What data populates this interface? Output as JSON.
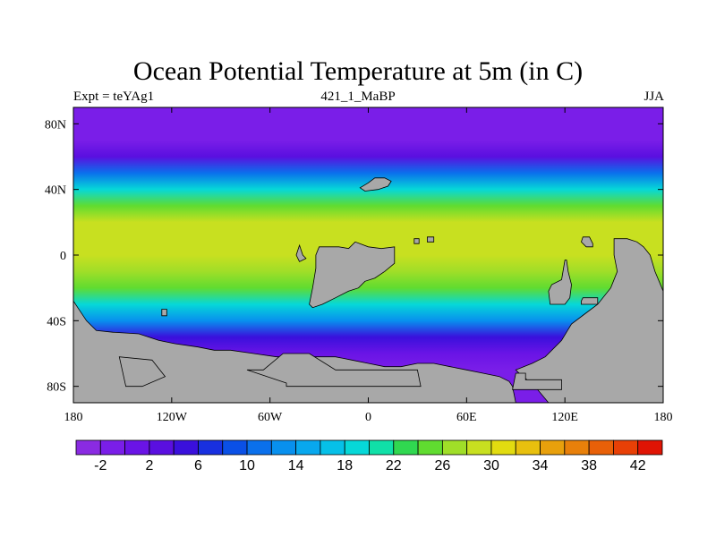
{
  "title": "Ocean Potential Temperature at 5m (in C)",
  "subtitle_left": "Expt = teYAg1",
  "subtitle_center": "421_1_MaBP",
  "subtitle_right": "JJA",
  "chart_data": {
    "type": "heatmap",
    "projection": "cylindrical-equidistant",
    "field": "Ocean potential temperature at 5 m depth",
    "units": "C",
    "season": "JJA",
    "xlim": [
      -180,
      180
    ],
    "ylim": [
      -90,
      90
    ],
    "x_ticks": [
      {
        "value": -180,
        "label": "180"
      },
      {
        "value": -120,
        "label": "120W"
      },
      {
        "value": -60,
        "label": "60W"
      },
      {
        "value": 0,
        "label": "0"
      },
      {
        "value": 60,
        "label": "60E"
      },
      {
        "value": 120,
        "label": "120E"
      },
      {
        "value": 180,
        "label": "180"
      }
    ],
    "y_ticks": [
      {
        "value": 80,
        "label": "80N"
      },
      {
        "value": 40,
        "label": "40N"
      },
      {
        "value": 0,
        "label": "0"
      },
      {
        "value": -40,
        "label": "40S"
      },
      {
        "value": -80,
        "label": "80S"
      }
    ],
    "colorbar": {
      "levels": [
        -4,
        -2,
        0,
        2,
        4,
        6,
        8,
        10,
        12,
        14,
        16,
        18,
        20,
        22,
        24,
        26,
        28,
        30,
        32,
        34,
        36,
        38,
        40,
        42,
        44
      ],
      "labels": [
        "-2",
        "2",
        "6",
        "10",
        "14",
        "18",
        "22",
        "26",
        "30",
        "34",
        "38",
        "42"
      ],
      "colors": [
        "#8a2be2",
        "#7a1ee8",
        "#6a14e6",
        "#5a0fe0",
        "#3a10dc",
        "#1830e0",
        "#0a50e6",
        "#0a70ec",
        "#0890ee",
        "#08a8ee",
        "#06c0e8",
        "#06d8d8",
        "#10e0a8",
        "#30d850",
        "#60dc30",
        "#a0de28",
        "#c8e020",
        "#e2dc10",
        "#e8c00e",
        "#e8a00c",
        "#e8800a",
        "#e86008",
        "#e84006",
        "#e01404"
      ]
    },
    "zonal_mean_profile": [
      {
        "lat": 90,
        "value": -1.8
      },
      {
        "lat": 70,
        "value": -1.5
      },
      {
        "lat": 60,
        "value": 3
      },
      {
        "lat": 50,
        "value": 11
      },
      {
        "lat": 40,
        "value": 19
      },
      {
        "lat": 30,
        "value": 25
      },
      {
        "lat": 20,
        "value": 28
      },
      {
        "lat": 10,
        "value": 29
      },
      {
        "lat": 0,
        "value": 29
      },
      {
        "lat": -10,
        "value": 27
      },
      {
        "lat": -20,
        "value": 24
      },
      {
        "lat": -30,
        "value": 19
      },
      {
        "lat": -40,
        "value": 12
      },
      {
        "lat": -50,
        "value": 5
      },
      {
        "lat": -60,
        "value": 0
      },
      {
        "lat": -70,
        "value": -1.5
      },
      {
        "lat": -90,
        "value": -1.8
      }
    ],
    "land_color": "#a8a8a8",
    "land_regions": [
      {
        "name": "north-atlantic-island",
        "polygon": [
          [
            -5,
            41
          ],
          [
            0,
            44
          ],
          [
            4,
            47
          ],
          [
            10,
            47
          ],
          [
            14,
            45
          ],
          [
            12,
            42
          ],
          [
            6,
            40
          ],
          [
            -2,
            39
          ]
        ]
      },
      {
        "name": "africa-west",
        "polygon": [
          [
            -42,
            6
          ],
          [
            -40,
            0
          ],
          [
            -38,
            -2
          ],
          [
            -42,
            -4
          ],
          [
            -44,
            0
          ]
        ]
      },
      {
        "name": "africa",
        "polygon": [
          [
            -30,
            5
          ],
          [
            -18,
            5
          ],
          [
            -12,
            4
          ],
          [
            -8,
            8
          ],
          [
            0,
            5
          ],
          [
            8,
            4
          ],
          [
            16,
            5
          ],
          [
            16,
            -5
          ],
          [
            10,
            -10
          ],
          [
            4,
            -14
          ],
          [
            -2,
            -16
          ],
          [
            -6,
            -20
          ],
          [
            -12,
            -22
          ],
          [
            -20,
            -26
          ],
          [
            -28,
            -30
          ],
          [
            -34,
            -32
          ],
          [
            -36,
            -30
          ],
          [
            -34,
            -20
          ],
          [
            -32,
            -8
          ],
          [
            -32,
            0
          ]
        ]
      },
      {
        "name": "indian-islet-a",
        "polygon": [
          [
            28,
            10
          ],
          [
            31,
            10
          ],
          [
            31,
            7
          ],
          [
            28,
            7
          ]
        ]
      },
      {
        "name": "indian-islet-b",
        "polygon": [
          [
            36,
            11
          ],
          [
            40,
            11
          ],
          [
            40,
            8
          ],
          [
            36,
            8
          ]
        ]
      },
      {
        "name": "pacific-islet",
        "polygon": [
          [
            -126,
            -33
          ],
          [
            -123,
            -33
          ],
          [
            -123,
            -37
          ],
          [
            -126,
            -37
          ]
        ]
      },
      {
        "name": "australia-west",
        "polygon": [
          [
            120,
            -3
          ],
          [
            121,
            -3
          ],
          [
            122,
            -10
          ],
          [
            124,
            -18
          ],
          [
            123,
            -26
          ],
          [
            120,
            -30
          ],
          [
            111,
            -30
          ],
          [
            110,
            -22
          ],
          [
            112,
            -18
          ],
          [
            118,
            -15
          ]
        ]
      },
      {
        "name": "australia-se",
        "polygon": [
          [
            130,
            -28
          ],
          [
            131,
            -26
          ],
          [
            140,
            -26
          ],
          [
            140,
            -30
          ],
          [
            130,
            -30
          ]
        ]
      },
      {
        "name": "east-continent",
        "polygon": [
          [
            150,
            10
          ],
          [
            158,
            10
          ],
          [
            164,
            8
          ],
          [
            168,
            5
          ],
          [
            172,
            0
          ],
          [
            175,
            -10
          ],
          [
            180,
            -22
          ],
          [
            180,
            -90
          ],
          [
            110,
            -90
          ],
          [
            100,
            -78
          ],
          [
            94,
            -74
          ],
          [
            90,
            -70
          ],
          [
            100,
            -66
          ],
          [
            108,
            -62
          ],
          [
            118,
            -52
          ],
          [
            124,
            -42
          ],
          [
            132,
            -36
          ],
          [
            140,
            -30
          ],
          [
            148,
            -20
          ],
          [
            152,
            -10
          ],
          [
            150,
            0
          ]
        ]
      },
      {
        "name": "islets-east",
        "polygon": [
          [
            131,
            11
          ],
          [
            135,
            11
          ],
          [
            137,
            7
          ],
          [
            137,
            5
          ],
          [
            133,
            5
          ],
          [
            130,
            8
          ]
        ]
      },
      {
        "name": "southwest-landmass",
        "polygon": [
          [
            -180,
            -28
          ],
          [
            -172,
            -40
          ],
          [
            -166,
            -46
          ],
          [
            -156,
            -47
          ],
          [
            -140,
            -48
          ],
          [
            -128,
            -52
          ],
          [
            -118,
            -54
          ],
          [
            -104,
            -56
          ],
          [
            -94,
            -58
          ],
          [
            -84,
            -58
          ],
          [
            -70,
            -60
          ],
          [
            -56,
            -62
          ],
          [
            -40,
            -62
          ],
          [
            -28,
            -62
          ],
          [
            -20,
            -62
          ],
          [
            -10,
            -64
          ],
          [
            0,
            -66
          ],
          [
            10,
            -68
          ],
          [
            20,
            -68
          ],
          [
            30,
            -66
          ],
          [
            40,
            -66
          ],
          [
            50,
            -68
          ],
          [
            60,
            -70
          ],
          [
            70,
            -72
          ],
          [
            80,
            -74
          ],
          [
            86,
            -77
          ],
          [
            88,
            -80
          ],
          [
            90,
            -90
          ],
          [
            -180,
            -90
          ]
        ]
      },
      {
        "name": "antarctic-channel-a",
        "polygon": [
          [
            -148,
            -80
          ],
          [
            -152,
            -62
          ],
          [
            -132,
            -64
          ],
          [
            -124,
            -74
          ],
          [
            -138,
            -80
          ]
        ]
      },
      {
        "name": "antarctic-channel-b",
        "polygon": [
          [
            -50,
            -78
          ],
          [
            -74,
            -70
          ],
          [
            -64,
            -70
          ],
          [
            -52,
            -60
          ],
          [
            -36,
            -60
          ],
          [
            -20,
            -70
          ],
          [
            30,
            -70
          ],
          [
            32,
            -80
          ],
          [
            -50,
            -80
          ]
        ]
      },
      {
        "name": "antarctic-channel-c",
        "polygon": [
          [
            90,
            -72
          ],
          [
            96,
            -72
          ],
          [
            96,
            -76
          ],
          [
            118,
            -76
          ],
          [
            118,
            -82
          ],
          [
            88,
            -82
          ]
        ]
      }
    ]
  }
}
